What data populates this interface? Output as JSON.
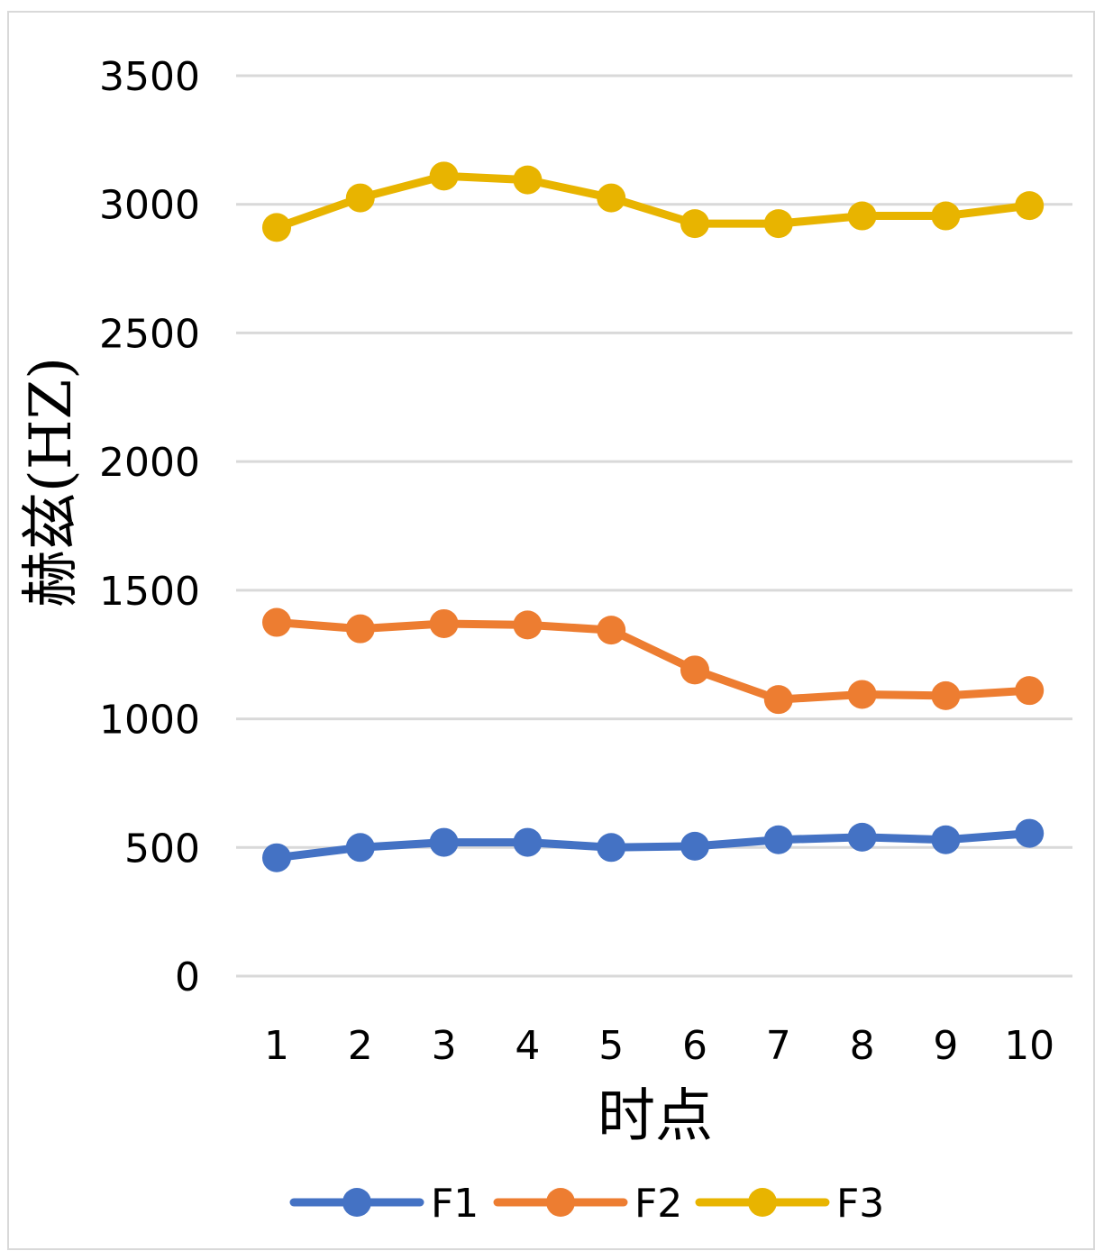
{
  "chart_data": {
    "type": "line",
    "title": "",
    "xlabel": "时点",
    "ylabel": "赫兹(HZ)",
    "categories": [
      "1",
      "2",
      "3",
      "4",
      "5",
      "6",
      "7",
      "8",
      "9",
      "10"
    ],
    "ylim": [
      0,
      3500
    ],
    "yticks": [
      "0",
      "500",
      "1000",
      "1500",
      "2000",
      "2500",
      "3000",
      "3500"
    ],
    "grid": true,
    "legend_position": "bottom",
    "series": [
      {
        "name": "F1",
        "color": "#4472C4",
        "values": [
          460,
          500,
          520,
          520,
          500,
          505,
          530,
          540,
          530,
          555
        ]
      },
      {
        "name": "F2",
        "color": "#ED7D31",
        "values": [
          1375,
          1350,
          1370,
          1365,
          1345,
          1190,
          1075,
          1095,
          1090,
          1110
        ]
      },
      {
        "name": "F3",
        "color": "#E8B400",
        "values": [
          2910,
          3025,
          3110,
          3095,
          3025,
          2925,
          2925,
          2955,
          2955,
          2995
        ]
      }
    ]
  }
}
